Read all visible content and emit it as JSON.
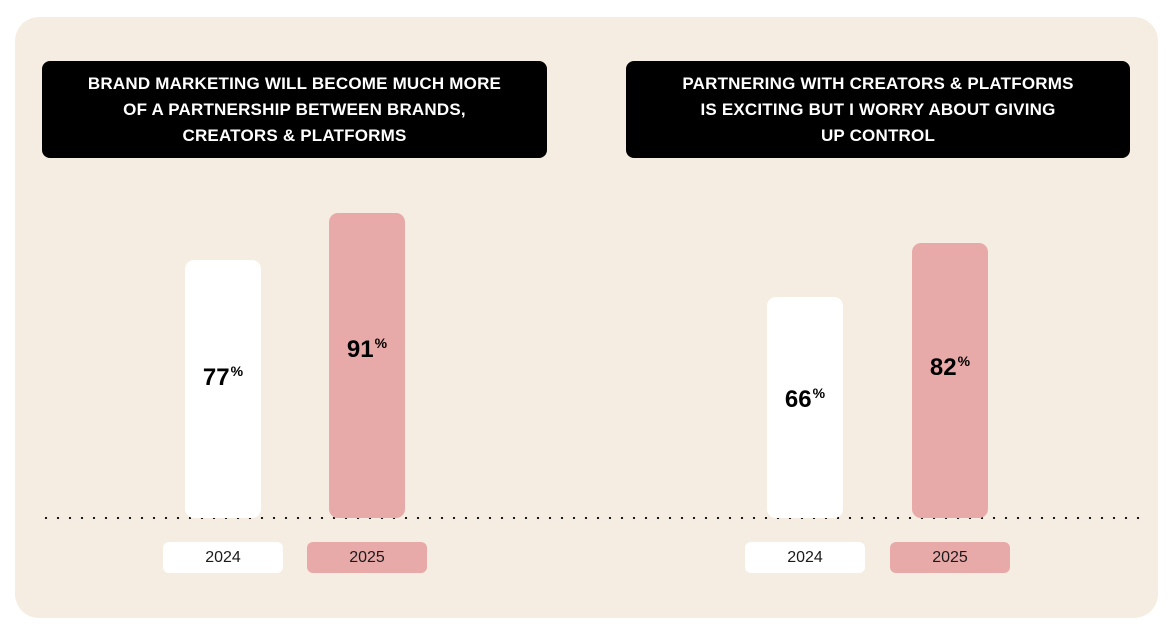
{
  "colors": {
    "background": "#f5ede2",
    "title_bg": "#000000",
    "title_text": "#ffffff",
    "bar_2024": "#ffffff",
    "bar_2025": "#e8aaa9"
  },
  "chart_data": [
    {
      "type": "bar",
      "title_lines": [
        "BRAND MARKETING WILL BECOME MUCH MORE",
        "OF A PARTNERSHIP BETWEEN BRANDS,",
        "CREATORS & PLATFORMS"
      ],
      "categories": [
        "2024",
        "2025"
      ],
      "values": [
        77,
        91
      ],
      "value_suffix": "%",
      "bar_colors": [
        "#ffffff",
        "#e8aaa9"
      ]
    },
    {
      "type": "bar",
      "title_lines": [
        "PARTNERING WITH CREATORS & PLATFORMS",
        "IS EXCITING BUT I WORRY ABOUT GIVING",
        "UP CONTROL"
      ],
      "categories": [
        "2024",
        "2025"
      ],
      "values": [
        66,
        82
      ],
      "value_suffix": "%",
      "bar_colors": [
        "#ffffff",
        "#e8aaa9"
      ]
    }
  ]
}
